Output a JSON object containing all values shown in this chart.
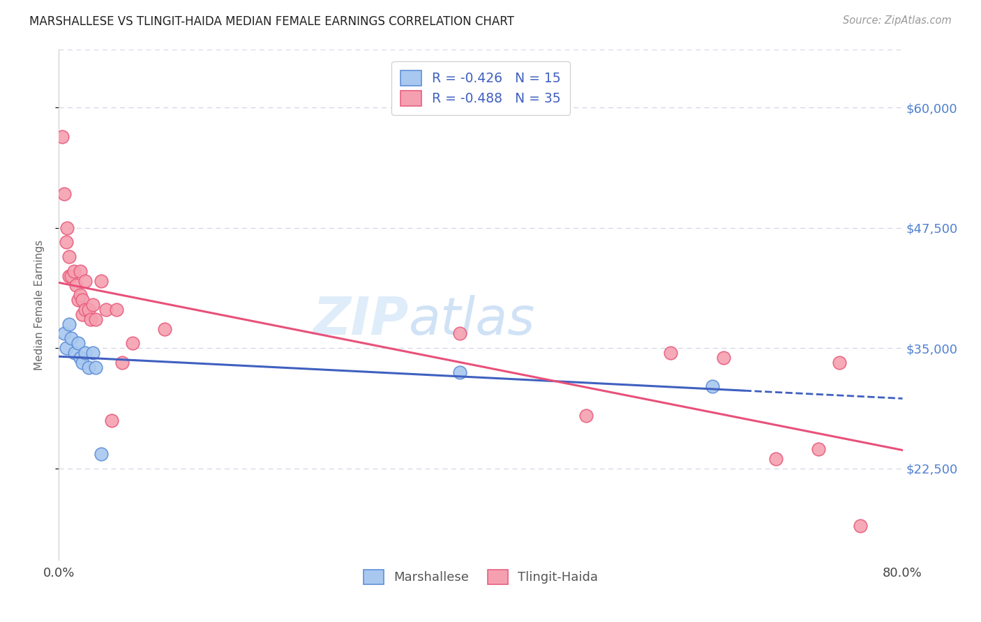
{
  "title": "MARSHALLESE VS TLINGIT-HAIDA MEDIAN FEMALE EARNINGS CORRELATION CHART",
  "source": "Source: ZipAtlas.com",
  "ylabel": "Median Female Earnings",
  "watermark_zip": "ZIP",
  "watermark_atlas": "atlas",
  "y_ticks": [
    22500,
    35000,
    47500,
    60000
  ],
  "y_tick_labels": [
    "$22,500",
    "$35,000",
    "$47,500",
    "$60,000"
  ],
  "x_range": [
    0.0,
    0.8
  ],
  "y_range": [
    13000,
    66000
  ],
  "marshallese_R": "-0.426",
  "marshallese_N": "15",
  "tlingit_R": "-0.488",
  "tlingit_N": "35",
  "marshallese_scatter_color": "#a8c8f0",
  "tlingit_scatter_color": "#f5a0b0",
  "marshallese_edge_color": "#6090d8",
  "tlingit_edge_color": "#e86080",
  "marshallese_line_color": "#4060c0",
  "tlingit_line_color": "#e8507a",
  "legend_text_color": "#4060c0",
  "ytick_color": "#5080d0",
  "marshallese_points": [
    [
      0.005,
      36500
    ],
    [
      0.007,
      35000
    ],
    [
      0.01,
      37500
    ],
    [
      0.012,
      36000
    ],
    [
      0.015,
      34500
    ],
    [
      0.018,
      35500
    ],
    [
      0.02,
      34000
    ],
    [
      0.022,
      33500
    ],
    [
      0.025,
      34500
    ],
    [
      0.028,
      33000
    ],
    [
      0.032,
      34500
    ],
    [
      0.035,
      33000
    ],
    [
      0.04,
      24000
    ],
    [
      0.38,
      32500
    ],
    [
      0.62,
      31000
    ]
  ],
  "tlingit_points": [
    [
      0.003,
      57000
    ],
    [
      0.005,
      51000
    ],
    [
      0.007,
      46000
    ],
    [
      0.008,
      47500
    ],
    [
      0.01,
      44500
    ],
    [
      0.01,
      42500
    ],
    [
      0.012,
      42500
    ],
    [
      0.014,
      43000
    ],
    [
      0.016,
      41500
    ],
    [
      0.018,
      40000
    ],
    [
      0.02,
      43000
    ],
    [
      0.02,
      40500
    ],
    [
      0.022,
      40000
    ],
    [
      0.022,
      38500
    ],
    [
      0.025,
      42000
    ],
    [
      0.025,
      39000
    ],
    [
      0.028,
      39000
    ],
    [
      0.03,
      38000
    ],
    [
      0.032,
      39500
    ],
    [
      0.035,
      38000
    ],
    [
      0.04,
      42000
    ],
    [
      0.045,
      39000
    ],
    [
      0.05,
      27500
    ],
    [
      0.055,
      39000
    ],
    [
      0.06,
      33500
    ],
    [
      0.07,
      35500
    ],
    [
      0.1,
      37000
    ],
    [
      0.38,
      36500
    ],
    [
      0.5,
      28000
    ],
    [
      0.58,
      34500
    ],
    [
      0.63,
      34000
    ],
    [
      0.68,
      23500
    ],
    [
      0.72,
      24500
    ],
    [
      0.74,
      33500
    ],
    [
      0.76,
      16500
    ]
  ],
  "background_color": "#ffffff",
  "grid_color": "#d8d8e8"
}
